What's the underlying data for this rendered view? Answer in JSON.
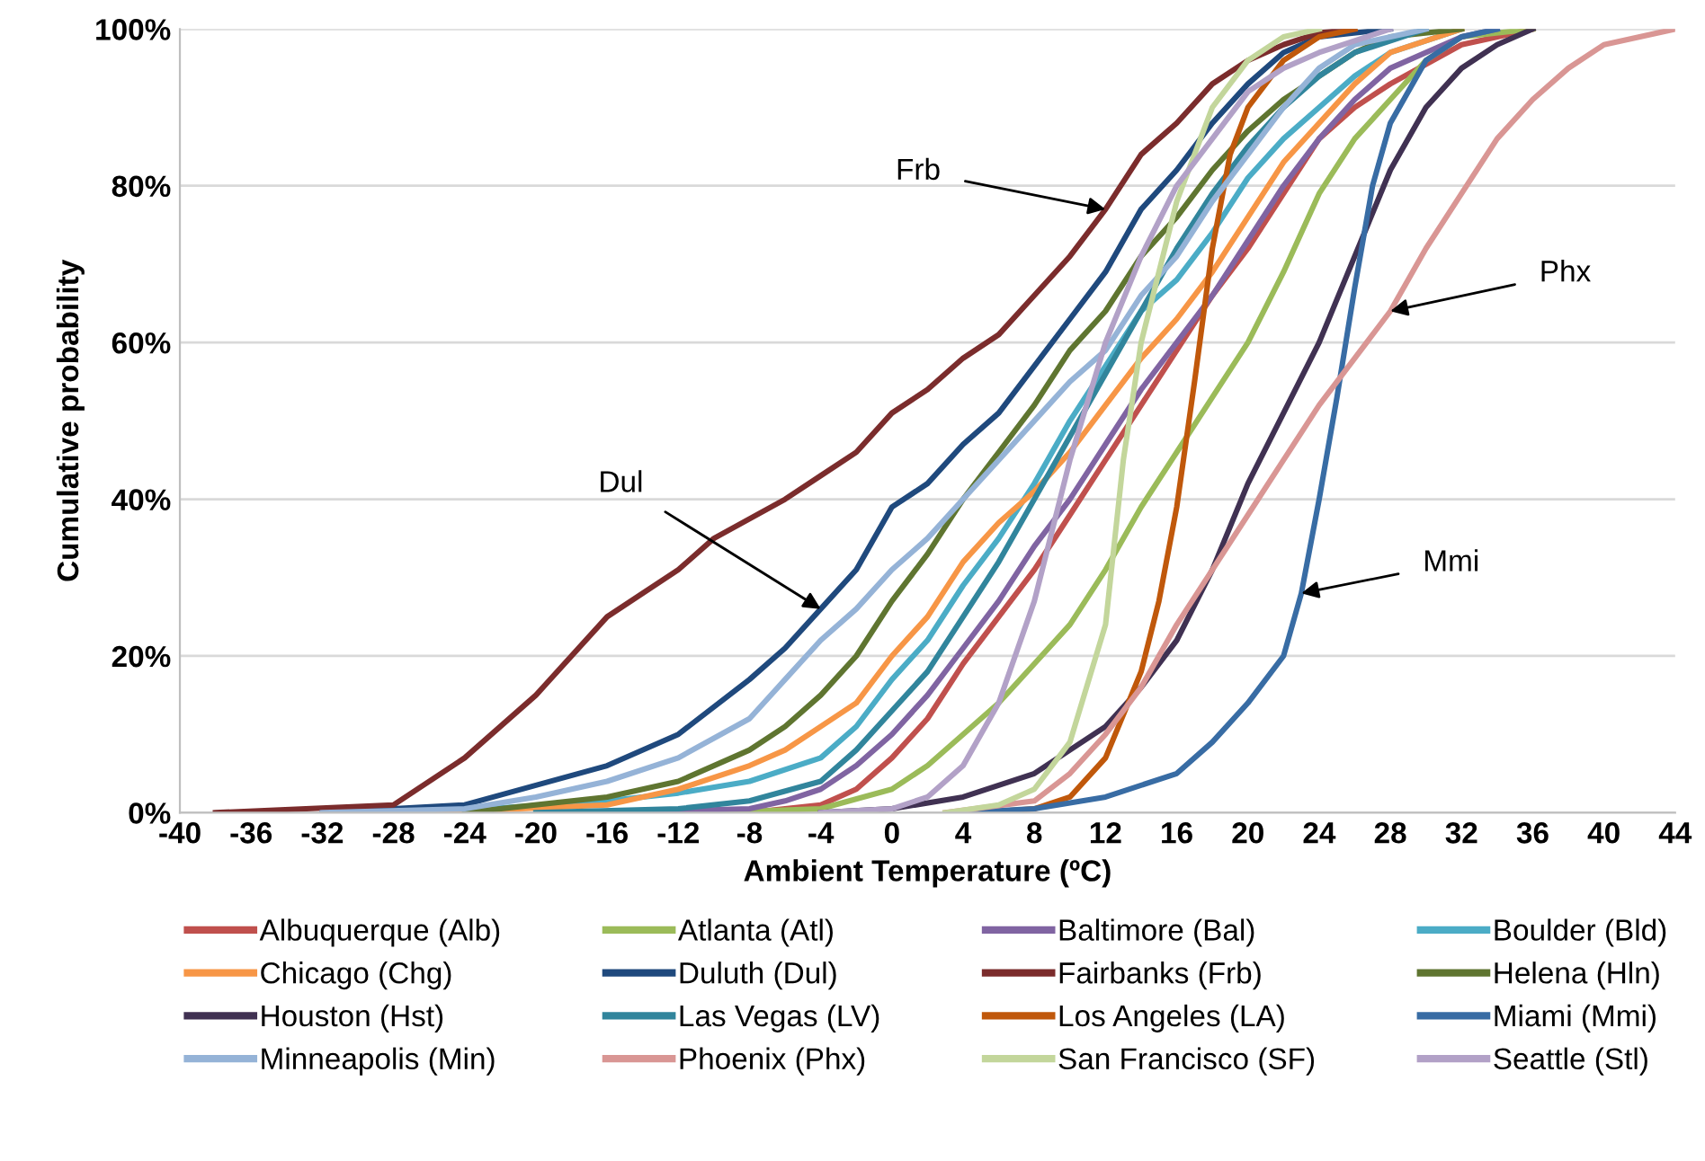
{
  "chart_data": {
    "type": "line",
    "xlabel": "Ambient Temperature (ºC)",
    "ylabel": "Cumulative probability",
    "xlim": [
      -40,
      44
    ],
    "xticks": [
      -40,
      -36,
      -32,
      -28,
      -24,
      -20,
      -16,
      -12,
      -8,
      -4,
      0,
      4,
      8,
      12,
      16,
      20,
      24,
      28,
      32,
      36,
      40,
      44
    ],
    "ylim": [
      0,
      100
    ],
    "yticks": [
      {
        "value": 0,
        "label": "0%"
      },
      {
        "value": 20,
        "label": "20%"
      },
      {
        "value": 40,
        "label": "40%"
      },
      {
        "value": 60,
        "label": "60%"
      },
      {
        "value": 80,
        "label": "80%"
      },
      {
        "value": 100,
        "label": "100%"
      }
    ],
    "grid": "y",
    "legend": "bottom",
    "marker": "none",
    "line_style": "solid",
    "annotations": [
      {
        "text": "Frb",
        "x": 12,
        "y": 77
      },
      {
        "text": "Dul",
        "x": -4,
        "y": 26
      },
      {
        "text": "Phx",
        "x": 28,
        "y": 64
      },
      {
        "text": "Mmi",
        "x": 23,
        "y": 28
      }
    ],
    "series": [
      {
        "name": "Albuquerque (Alb)",
        "color": "#c0504d",
        "x": [
          -14,
          -8,
          -4,
          -2,
          0,
          2,
          4,
          6,
          8,
          10,
          12,
          14,
          16,
          18,
          20,
          22,
          24,
          26,
          28,
          32,
          36
        ],
        "values": [
          0,
          0,
          1,
          3,
          7,
          12,
          19,
          25,
          31,
          38,
          45,
          52,
          59,
          66,
          72,
          79,
          86,
          90,
          93,
          98,
          100
        ]
      },
      {
        "name": "Atlanta (Atl)",
        "color": "#9bbb59",
        "x": [
          -10,
          -4,
          0,
          2,
          4,
          6,
          8,
          10,
          12,
          14,
          16,
          18,
          20,
          22,
          24,
          26,
          28,
          30,
          32,
          36
        ],
        "values": [
          0,
          0.5,
          3,
          6,
          10,
          14,
          19,
          24,
          31,
          39,
          46,
          53,
          60,
          69,
          79,
          86,
          91,
          96,
          99,
          100
        ]
      },
      {
        "name": "Baltimore (Bal)",
        "color": "#8064a2",
        "x": [
          -16,
          -8,
          -6,
          -4,
          -2,
          0,
          2,
          4,
          6,
          8,
          10,
          12,
          14,
          16,
          18,
          20,
          22,
          24,
          26,
          28,
          32,
          34
        ],
        "values": [
          0,
          0.5,
          1.5,
          3,
          6,
          10,
          15,
          21,
          27,
          34,
          40,
          47,
          54,
          60,
          66,
          73,
          80,
          86,
          91,
          95,
          99,
          100
        ]
      },
      {
        "name": "Boulder (Bld)",
        "color": "#4bacc6",
        "x": [
          -26,
          -16,
          -12,
          -8,
          -4,
          -2,
          0,
          2,
          4,
          6,
          8,
          10,
          12,
          14,
          16,
          18,
          20,
          22,
          24,
          26,
          28,
          32
        ],
        "values": [
          0,
          1.5,
          2.5,
          4,
          7,
          11,
          17,
          22,
          29,
          35,
          42,
          50,
          57,
          64,
          68,
          74,
          81,
          86,
          90,
          94,
          97,
          100
        ]
      },
      {
        "name": "Chicago (Chg)",
        "color": "#f79646",
        "x": [
          -26,
          -16,
          -12,
          -8,
          -6,
          -4,
          -2,
          0,
          2,
          4,
          6,
          8,
          10,
          12,
          14,
          16,
          18,
          20,
          22,
          24,
          26,
          28,
          32
        ],
        "values": [
          0,
          1,
          3,
          6,
          8,
          11,
          14,
          20,
          25,
          32,
          37,
          41,
          46,
          52,
          58,
          63,
          69,
          76,
          83,
          88,
          93,
          97,
          100
        ]
      },
      {
        "name": "Duluth (Dul)",
        "color": "#1f497d",
        "x": [
          -32,
          -24,
          -20,
          -16,
          -12,
          -8,
          -6,
          -4,
          -2,
          0,
          2,
          4,
          6,
          8,
          10,
          12,
          14,
          16,
          18,
          20,
          22,
          24,
          28
        ],
        "values": [
          0,
          1,
          3.5,
          6,
          10,
          17,
          21,
          26,
          31,
          39,
          42,
          47,
          51,
          57,
          63,
          69,
          77,
          82,
          88,
          93,
          97,
          99,
          100
        ]
      },
      {
        "name": "Fairbanks (Frb)",
        "color": "#7b2c2c",
        "x": [
          -38,
          -28,
          -24,
          -20,
          -16,
          -12,
          -10,
          -6,
          -4,
          -2,
          0,
          2,
          4,
          6,
          8,
          10,
          12,
          14,
          16,
          18,
          20,
          22,
          24,
          26
        ],
        "values": [
          0,
          1,
          7,
          15,
          25,
          31,
          35,
          40,
          43,
          46,
          51,
          54,
          58,
          61,
          66,
          71,
          77,
          84,
          88,
          93,
          96,
          98,
          99.5,
          100
        ]
      },
      {
        "name": "Helena (Hln)",
        "color": "#5f7530",
        "x": [
          -24,
          -16,
          -12,
          -8,
          -6,
          -4,
          -2,
          0,
          2,
          4,
          6,
          8,
          10,
          12,
          14,
          16,
          18,
          20,
          22,
          24,
          26,
          28,
          32
        ],
        "values": [
          0,
          2,
          4,
          8,
          11,
          15,
          20,
          27,
          33,
          40,
          46,
          52,
          59,
          64,
          71,
          76,
          82,
          87,
          91,
          94,
          97,
          99,
          100
        ]
      },
      {
        "name": "Houston (Hst)",
        "color": "#403152",
        "x": [
          -4,
          0,
          4,
          8,
          12,
          14,
          16,
          18,
          20,
          22,
          24,
          26,
          28,
          30,
          32,
          34,
          36
        ],
        "values": [
          0,
          0.5,
          2,
          5,
          11,
          16,
          22,
          31,
          42,
          51,
          60,
          71,
          82,
          90,
          95,
          98,
          100
        ]
      },
      {
        "name": "Las Vegas (LV)",
        "color": "#31859c",
        "x": [
          -20,
          -12,
          -8,
          -4,
          -2,
          0,
          2,
          4,
          6,
          8,
          10,
          12,
          14,
          16,
          18,
          20,
          22,
          24,
          26,
          30
        ],
        "values": [
          0,
          0.5,
          1.5,
          4,
          8,
          13,
          18,
          25,
          32,
          40,
          48,
          56,
          64,
          72,
          79,
          85,
          90,
          94,
          97,
          100
        ]
      },
      {
        "name": "Los Angeles (LA)",
        "color": "#c0580b",
        "x": [
          5,
          8,
          10,
          12,
          14,
          15,
          16,
          17,
          18,
          19,
          20,
          22,
          24,
          26
        ],
        "values": [
          0,
          0.5,
          2,
          7,
          18,
          27,
          39,
          55,
          72,
          84,
          90,
          96,
          99,
          100
        ]
      },
      {
        "name": "Miami (Mmi)",
        "color": "#386ca4",
        "x": [
          4,
          8,
          12,
          16,
          18,
          20,
          22,
          23,
          24,
          25,
          26,
          27,
          28,
          30,
          32,
          34
        ],
        "values": [
          0,
          0.5,
          2,
          5,
          9,
          14,
          20,
          28,
          40,
          53,
          67,
          80,
          88,
          96,
          99,
          100
        ]
      },
      {
        "name": "Minneapolis (Min)",
        "color": "#95b3d7",
        "x": [
          -32,
          -24,
          -20,
          -16,
          -12,
          -8,
          -6,
          -4,
          -2,
          0,
          2,
          4,
          6,
          8,
          10,
          12,
          14,
          16,
          18,
          20,
          22,
          24,
          26,
          30
        ],
        "values": [
          0,
          0.5,
          2,
          4,
          7,
          12,
          17,
          22,
          26,
          31,
          35,
          40,
          45,
          50,
          55,
          59,
          66,
          71,
          78,
          84,
          90,
          95,
          98,
          100
        ]
      },
      {
        "name": "Phoenix (Phx)",
        "color": "#d99694",
        "x": [
          3,
          8,
          10,
          12,
          14,
          16,
          18,
          20,
          22,
          24,
          26,
          28,
          30,
          32,
          34,
          36,
          38,
          40,
          44
        ],
        "values": [
          0,
          1.5,
          5,
          10,
          16,
          24,
          31,
          38,
          45,
          52,
          58,
          64,
          72,
          79,
          86,
          91,
          95,
          98,
          100
        ]
      },
      {
        "name": "San Francisco (SF)",
        "color": "#c3d69b",
        "x": [
          3,
          6,
          8,
          10,
          12,
          13,
          14,
          16,
          18,
          20,
          22,
          24
        ],
        "values": [
          0,
          1,
          3,
          9,
          24,
          45,
          60,
          78,
          90,
          96,
          99,
          100
        ]
      },
      {
        "name": "Seattle (Stl)",
        "color": "#b2a1c7",
        "x": [
          -4,
          0,
          2,
          4,
          6,
          8,
          10,
          12,
          14,
          16,
          18,
          20,
          22,
          24,
          28
        ],
        "values": [
          0,
          0.5,
          2,
          6,
          14,
          27,
          45,
          60,
          71,
          80,
          86,
          92,
          95,
          97,
          100
        ]
      }
    ]
  }
}
